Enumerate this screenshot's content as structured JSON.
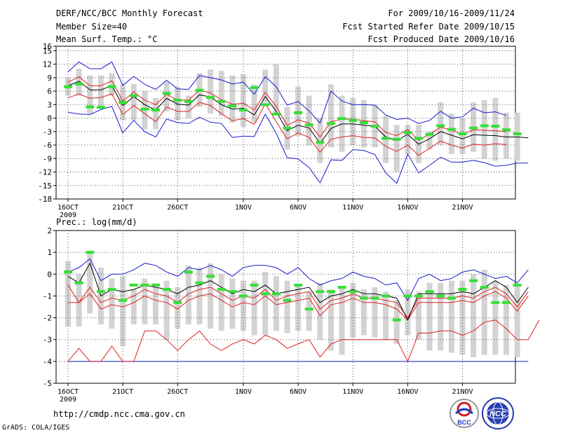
{
  "header": {
    "title": "DERF/NCC/BCC Monthly Forecast",
    "member_size": "Member Size=40",
    "variable": "Mean Surf. Temp.: °C",
    "period": "For 2009/10/16-2009/11/24",
    "started": "Fcst Started Refer Date 2009/10/15",
    "produced": "Fcst Produced Date 2009/10/16"
  },
  "footer": {
    "url": "http://cmdp.ncc.cma.gov.cn",
    "grads": "GrADS: COLA/IGES",
    "logo_bcc": "BCC",
    "logo_ncc": "NCC"
  },
  "colors": {
    "box": "#d3d3d3",
    "green": "#33e033",
    "red": "#e02020",
    "blue": "#1a1ad0",
    "black": "#000000"
  },
  "chart_data": [
    {
      "type": "line",
      "title": "Mean Surf. Temp.: °C",
      "xlabel": "",
      "ylabel": "",
      "x_tick_labels": [
        "16OCT",
        "21OCT",
        "26OCT",
        "1NOV",
        "6NOV",
        "11NOV",
        "16NOV",
        "21NOV"
      ],
      "x_tick_days": [
        0,
        5,
        10,
        16,
        21,
        26,
        31,
        36
      ],
      "year_label": "2009",
      "ylim": [
        -18,
        16
      ],
      "yticks": [
        16,
        15,
        12,
        9,
        6,
        3,
        0,
        -3,
        -6,
        -9,
        -12,
        -15,
        -18
      ],
      "days": 40,
      "mean": [
        7.2,
        8.2,
        6.3,
        6.3,
        7.2,
        2.8,
        4.8,
        3.0,
        1.8,
        4.4,
        3.1,
        2.9,
        5.2,
        4.7,
        3.0,
        2.0,
        2.2,
        0.7,
        4.8,
        1.5,
        -2.8,
        -1.6,
        -2.2,
        -5.6,
        -2.3,
        -1.3,
        -1.3,
        -1.6,
        -1.8,
        -4.2,
        -5.0,
        -3.6,
        -5.8,
        -4.6,
        -3.0,
        -3.8,
        -4.6,
        -3.7,
        -3.8,
        -3.9,
        -4.2,
        -4.2,
        -4.4
      ],
      "upper_red": [
        8.0,
        9.2,
        7.2,
        7.2,
        8.3,
        3.8,
        5.8,
        4.0,
        3.0,
        5.3,
        4.0,
        4.0,
        6.2,
        5.6,
        4.1,
        3.1,
        3.3,
        1.8,
        5.7,
        2.6,
        -1.6,
        -0.4,
        -1.1,
        -4.2,
        -0.8,
        -0.2,
        -0.2,
        -0.6,
        -0.8,
        -3.2,
        -3.9,
        -2.5,
        -4.9,
        -3.6,
        -2.0,
        -2.7,
        -3.6,
        -2.6,
        -2.7,
        -2.8,
        -3.0
      ],
      "lower_red": [
        4.5,
        5.4,
        4.4,
        4.6,
        5.4,
        0.8,
        2.8,
        1.0,
        -0.8,
        2.5,
        1.5,
        1.5,
        3.5,
        2.8,
        1.0,
        -0.6,
        -0.1,
        -1.4,
        3.2,
        -0.8,
        -4.6,
        -3.3,
        -4.3,
        -7.6,
        -4.7,
        -4.2,
        -3.9,
        -4.3,
        -4.4,
        -6.3,
        -7.4,
        -6.0,
        -8.3,
        -6.7,
        -5.1,
        -6.0,
        -6.7,
        -5.8,
        -6.0,
        -5.7,
        -5.9
      ],
      "upper_blue": [
        10.3,
        12.5,
        11.0,
        11.0,
        12.5,
        7.3,
        9.3,
        7.5,
        6.4,
        8.4,
        6.5,
        6.4,
        9.5,
        9.0,
        8.5,
        7.6,
        8.0,
        5.3,
        9.2,
        7.0,
        2.9,
        3.7,
        1.6,
        -1.1,
        6.0,
        3.8,
        3.0,
        3.0,
        2.9,
        0.7,
        -0.3,
        0.0,
        -1.2,
        -0.5,
        1.5,
        0.0,
        0.3,
        2.2,
        1.2,
        1.4,
        0.6
      ],
      "lower_blue": [
        1.3,
        0.9,
        0.8,
        1.9,
        2.6,
        -3.3,
        -0.5,
        -3.0,
        -4.2,
        -0.2,
        -1.0,
        -1.2,
        0.2,
        -0.9,
        -1.2,
        -4.3,
        -4.0,
        -4.1,
        0.9,
        -3.4,
        -8.8,
        -9.1,
        -11.0,
        -14.4,
        -9.3,
        -9.4,
        -7.0,
        -7.2,
        -8.1,
        -12.2,
        -14.5,
        -8.0,
        -12.2,
        -10.5,
        -8.7,
        -9.8,
        -9.8,
        -9.4,
        -9.9,
        -10.7,
        -10.5,
        -10.0,
        -10.0
      ],
      "green_marks": [
        7.0,
        7.6,
        2.5,
        2.4,
        7.0,
        3.5,
        5.0,
        2.0,
        1.8,
        5.5,
        4.0,
        3.7,
        6.2,
        4.6,
        3.7,
        2.7,
        1.8,
        6.8,
        3.0,
        0.9,
        -2.2,
        1.2,
        -1.5,
        -5.4,
        -1.2,
        -0.1,
        -0.5,
        -1.0,
        -1.8,
        -4.5,
        -4.7,
        -3.2,
        -4.5,
        -3.6,
        -1.7,
        -2.5,
        -3.5,
        -2.2,
        -1.7,
        -1.8,
        -2.6,
        -3.5
      ],
      "box_top": [
        9.0,
        11.0,
        9.5,
        9.5,
        10.0,
        7.5,
        7.6,
        6.0,
        4.5,
        8.0,
        7.0,
        5.0,
        10.0,
        10.8,
        10.5,
        9.5,
        9.8,
        7.5,
        10.8,
        12.0,
        2.5,
        7.0,
        5.0,
        0.0,
        7.5,
        5.0,
        4.5,
        4.0,
        3.0,
        0.5,
        -1.5,
        -1.5,
        -1.5,
        -3.0,
        3.5,
        1.0,
        0.0,
        3.5,
        4.0,
        4.5,
        1.2,
        1.2
      ],
      "box_bottom": [
        5.0,
        5.0,
        1.0,
        2.5,
        5.0,
        -0.5,
        -0.5,
        -2.5,
        -2.5,
        1.5,
        -0.5,
        0.0,
        2.5,
        1.0,
        0.5,
        -1.0,
        -2.0,
        -1.0,
        3.5,
        1.0,
        -7.0,
        -4.0,
        -6.0,
        -10.0,
        -6.5,
        -7.5,
        -6.0,
        -6.5,
        -6.5,
        -10.0,
        -12.0,
        -8.0,
        -10.0,
        -7.0,
        -6.0,
        -8.0,
        -8.0,
        -7.5,
        -9.0,
        -9.5,
        -9.0,
        -9.5
      ]
    },
    {
      "type": "line",
      "title": "Prec.: log(mm/d)",
      "xlabel": "",
      "ylabel": "",
      "x_tick_labels": [
        "16OCT",
        "21OCT",
        "26OCT",
        "1NOV",
        "6NOV",
        "11NOV",
        "16NOV",
        "21NOV"
      ],
      "x_tick_days": [
        0,
        5,
        10,
        16,
        21,
        26,
        31,
        36
      ],
      "year_label": "2009",
      "ylim": [
        -5,
        2
      ],
      "yticks": [
        2,
        1,
        0,
        -1,
        -2,
        -3,
        -4,
        -5
      ],
      "days": 40,
      "mean": [
        -0.1,
        -0.4,
        0.5,
        -1.0,
        -0.7,
        -0.8,
        -0.7,
        -0.5,
        -0.6,
        -0.7,
        -0.9,
        -0.6,
        -0.5,
        -0.3,
        -0.6,
        -0.9,
        -0.7,
        -0.8,
        -0.5,
        -0.9,
        -0.8,
        -0.7,
        -0.6,
        -1.3,
        -1.0,
        -0.9,
        -0.7,
        -0.9,
        -0.9,
        -1.0,
        -1.1,
        -2.1,
        -0.9,
        -0.9,
        -0.9,
        -0.9,
        -0.8,
        -0.9,
        -0.6,
        -0.3,
        -0.6,
        -1.3,
        -0.6
      ],
      "upper_blue": [
        0.1,
        0.3,
        0.7,
        -0.3,
        0.0,
        0.0,
        0.2,
        0.5,
        0.4,
        0.1,
        -0.1,
        0.3,
        0.2,
        0.4,
        0.2,
        -0.1,
        0.3,
        0.4,
        0.4,
        0.3,
        0.0,
        0.3,
        -0.2,
        -0.5,
        -0.3,
        -0.2,
        0.1,
        -0.1,
        -0.2,
        -0.5,
        -0.4,
        -1.2,
        -0.2,
        0.0,
        -0.3,
        -0.2,
        0.1,
        0.2,
        0.0,
        -0.2,
        -0.1,
        -0.4,
        0.2
      ],
      "upper_red": [
        -0.5,
        -1.3,
        -0.6,
        -1.3,
        -1.1,
        -1.2,
        -1.0,
        -0.7,
        -0.9,
        -1.0,
        -1.3,
        -0.9,
        -0.7,
        -0.6,
        -0.9,
        -1.2,
        -1.0,
        -1.1,
        -0.7,
        -1.2,
        -1.0,
        -0.9,
        -0.8,
        -1.6,
        -1.2,
        -1.1,
        -0.9,
        -1.1,
        -1.1,
        -1.2,
        -1.3,
        -2.0,
        -1.1,
        -1.1,
        -1.1,
        -1.1,
        -1.0,
        -1.1,
        -0.8,
        -0.6,
        -0.9,
        -1.5,
        -0.8
      ],
      "lower_red": [
        -1.3,
        -1.3,
        -0.9,
        -1.6,
        -1.4,
        -1.5,
        -1.3,
        -1.0,
        -1.2,
        -1.3,
        -1.6,
        -1.2,
        -1.0,
        -0.9,
        -1.2,
        -1.5,
        -1.3,
        -1.4,
        -1.0,
        -1.4,
        -1.3,
        -1.2,
        -1.1,
        -1.9,
        -1.4,
        -1.3,
        -1.1,
        -1.3,
        -1.3,
        -1.4,
        -1.6,
        -2.1,
        -1.3,
        -1.3,
        -1.3,
        -1.3,
        -1.2,
        -1.3,
        -1.0,
        -0.8,
        -1.1,
        -1.7,
        -1.0
      ],
      "lower_red2": [
        -4.0,
        -3.4,
        -4.0,
        -4.0,
        -3.3,
        -4.0,
        -4.0,
        -2.6,
        -2.6,
        -3.0,
        -3.5,
        -3.0,
        -2.6,
        -3.2,
        -3.5,
        -3.2,
        -3.0,
        -3.2,
        -2.8,
        -3.0,
        -3.4,
        -3.2,
        -3.0,
        -3.8,
        -3.2,
        -3.0,
        -3.0,
        -3.0,
        -3.0,
        -3.0,
        -3.0,
        -4.0,
        -2.7,
        -2.7,
        -2.6,
        -2.6,
        -2.8,
        -2.6,
        -2.2,
        -2.1,
        -2.5,
        -3.0,
        -3.0,
        -2.1
      ],
      "lower_blue": [
        -4.0,
        -4.0,
        -4.0,
        -4.0,
        -4.0,
        -4.0,
        -4.0,
        -4.0,
        -4.0,
        -4.0,
        -4.0,
        -4.0,
        -4.0,
        -4.0,
        -4.0,
        -4.0,
        -4.0,
        -4.0,
        -4.0,
        -4.0,
        -4.0,
        -4.0,
        -4.0,
        -4.0,
        -4.0,
        -4.0,
        -4.0,
        -4.0,
        -4.0,
        -4.0,
        -4.0,
        -4.0,
        -4.0,
        -4.0,
        -4.0,
        -4.0,
        -4.0,
        -4.0,
        -4.0,
        -4.0,
        -4.0,
        -4.0,
        -4.0
      ],
      "green_marks": [
        0.1,
        -0.4,
        1.0,
        -0.8,
        -0.7,
        -1.2,
        -0.5,
        -0.5,
        -0.5,
        -0.7,
        -1.3,
        0.1,
        -0.4,
        -0.1,
        -0.7,
        -0.8,
        -1.0,
        -0.5,
        -0.9,
        -0.9,
        -1.2,
        -0.5,
        -1.6,
        -0.8,
        -0.8,
        -0.6,
        -0.8,
        -1.1,
        -1.1,
        -1.0,
        -2.1,
        -1.0,
        -1.0,
        -0.8,
        -1.0,
        -1.1,
        -0.7,
        -0.3,
        -0.6,
        -1.3,
        -1.3,
        -0.5
      ],
      "box_top": [
        0.6,
        0.0,
        1.0,
        0.3,
        -0.2,
        -0.1,
        -0.7,
        -0.2,
        -0.6,
        -0.3,
        -0.6,
        0.4,
        0.3,
        0.5,
        0.0,
        -0.2,
        -0.3,
        -0.3,
        0.1,
        -0.1,
        -0.3,
        -0.5,
        -0.8,
        -0.4,
        -0.7,
        -0.6,
        -0.4,
        -0.7,
        -0.6,
        -0.8,
        -1.2,
        -0.7,
        -0.8,
        -0.4,
        -0.4,
        -0.3,
        -0.3,
        0.0,
        0.2,
        -0.3,
        -0.5,
        -0.5
      ],
      "box_bottom": [
        -2.4,
        -2.4,
        -1.8,
        -2.3,
        -2.5,
        -3.3,
        -2.3,
        -2.3,
        -2.3,
        -3.0,
        -2.5,
        -2.3,
        -2.3,
        -2.5,
        -2.6,
        -2.5,
        -2.6,
        -2.8,
        -2.8,
        -2.6,
        -2.7,
        -2.6,
        -2.6,
        -3.0,
        -3.5,
        -3.7,
        -2.9,
        -2.8,
        -2.9,
        -3.0,
        -3.2,
        -2.8,
        -3.0,
        -3.5,
        -3.5,
        -3.6,
        -3.7,
        -3.8,
        -3.7,
        -3.7,
        -3.7,
        -3.8
      ]
    }
  ]
}
